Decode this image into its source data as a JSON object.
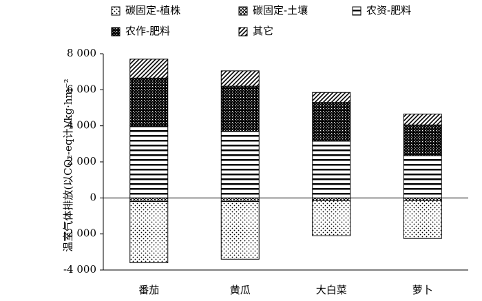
{
  "chart_data": {
    "type": "bar",
    "y_label": "温室气体排放(以CO₂-eq计)/kg·hm⁻²",
    "categories": [
      "番茄",
      "黄瓜",
      "大白菜",
      "萝卜"
    ],
    "series": [
      {
        "name": "碳固定-植株",
        "pattern": "dots",
        "values": [
          -3400,
          -3200,
          -1950,
          -2100
        ]
      },
      {
        "name": "碳固定-土壤",
        "pattern": "crossdiag",
        "values": [
          -200,
          -200,
          -150,
          -150
        ]
      },
      {
        "name": "农资-肥料",
        "pattern": "hlines",
        "values": [
          4000,
          3700,
          3150,
          2350
        ]
      },
      {
        "name": "农作-肥料",
        "pattern": "grid",
        "values": [
          2650,
          2500,
          2150,
          1700
        ]
      },
      {
        "name": "其它",
        "pattern": "diag",
        "values": [
          1050,
          850,
          550,
          600
        ]
      }
    ],
    "ylim": [
      -4000,
      8000
    ],
    "yticks": [
      {
        "value": -4000,
        "label": "-4 000"
      },
      {
        "value": -2000,
        "label": "-2 000"
      },
      0,
      {
        "value": 2000,
        "label": "2 000"
      },
      {
        "value": 4000,
        "label": "4 000"
      },
      {
        "value": 6000,
        "label": "6 000"
      },
      {
        "value": 8000,
        "label": "8 000"
      }
    ],
    "stacked": true
  }
}
